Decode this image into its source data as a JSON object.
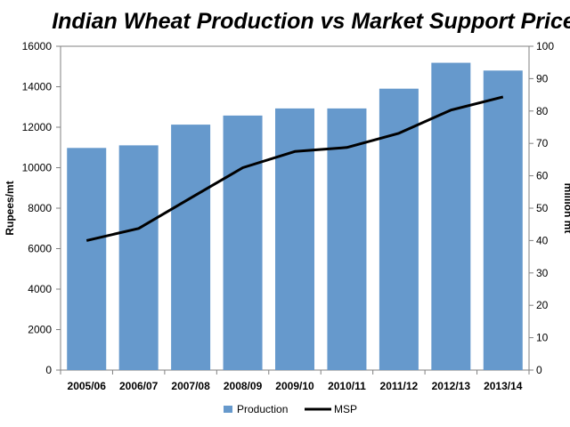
{
  "chart_data": {
    "type": "bar",
    "title": "Indian Wheat Production vs Market Support Price",
    "categories": [
      "2005/06",
      "2006/07",
      "2007/08",
      "2008/09",
      "2009/10",
      "2010/11",
      "2011/12",
      "2012/13",
      "2013/14"
    ],
    "series": [
      {
        "name": "Production",
        "type": "bar",
        "axis": "right",
        "color": "#6699cc",
        "values": [
          68.6,
          69.4,
          75.8,
          78.6,
          80.8,
          80.8,
          86.9,
          94.9,
          92.5
        ]
      },
      {
        "name": "MSP",
        "type": "line",
        "axis": "left",
        "color": "#000000",
        "values": [
          6400,
          7000,
          8500,
          10000,
          10800,
          11000,
          11700,
          12850,
          13500
        ]
      }
    ],
    "left_axis": {
      "label": "Rupees/mt",
      "range": [
        0,
        16000
      ],
      "ticks": [
        "0",
        "2000",
        "4000",
        "6000",
        "8000",
        "10000",
        "12000",
        "14000",
        "16000"
      ]
    },
    "right_axis": {
      "label": "million mt",
      "range": [
        0,
        100
      ],
      "ticks": [
        "0",
        "10",
        "20",
        "30",
        "40",
        "50",
        "60",
        "70",
        "80",
        "90",
        "100"
      ]
    },
    "grid": false,
    "legend": "bottom"
  }
}
